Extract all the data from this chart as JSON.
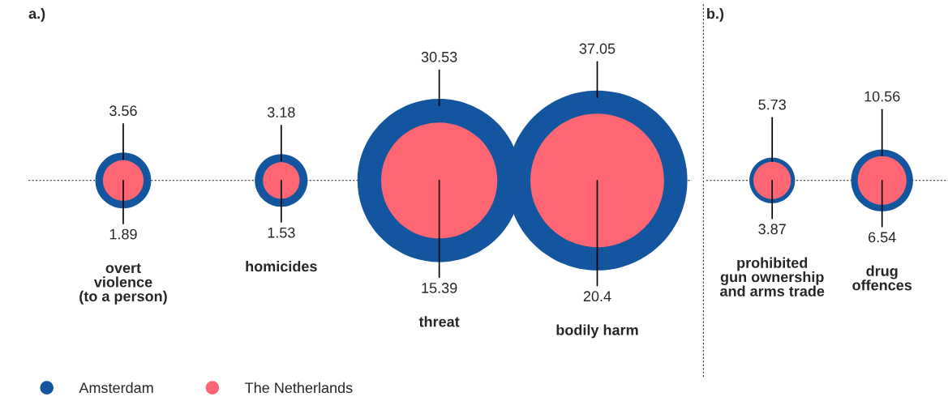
{
  "chart_data": [
    {
      "type": "other",
      "title": "a.)",
      "categories": [
        "overt\nviolence\n(to a person)",
        "homicides",
        "threat",
        "bodily harm"
      ],
      "series": [
        {
          "name": "Amsterdam",
          "color": "#13559e",
          "values": [
            3.56,
            3.18,
            30.53,
            37.05
          ]
        },
        {
          "name": "The Netherlands",
          "color": "#fd6672",
          "values": [
            1.89,
            1.53,
            15.39,
            20.4
          ]
        }
      ],
      "data_labels": true,
      "legend": "bottom left"
    },
    {
      "type": "other",
      "title": "b.)",
      "categories": [
        "prohibited\ngun ownership\nand arms trade",
        "drug\noffences"
      ],
      "series": [
        {
          "color": "#13559e",
          "values": [
            5.73,
            10.56
          ]
        },
        {
          "color": "#fd6672",
          "values": [
            3.87,
            6.54
          ]
        }
      ],
      "data_labels": true,
      "legend": false
    }
  ]
}
